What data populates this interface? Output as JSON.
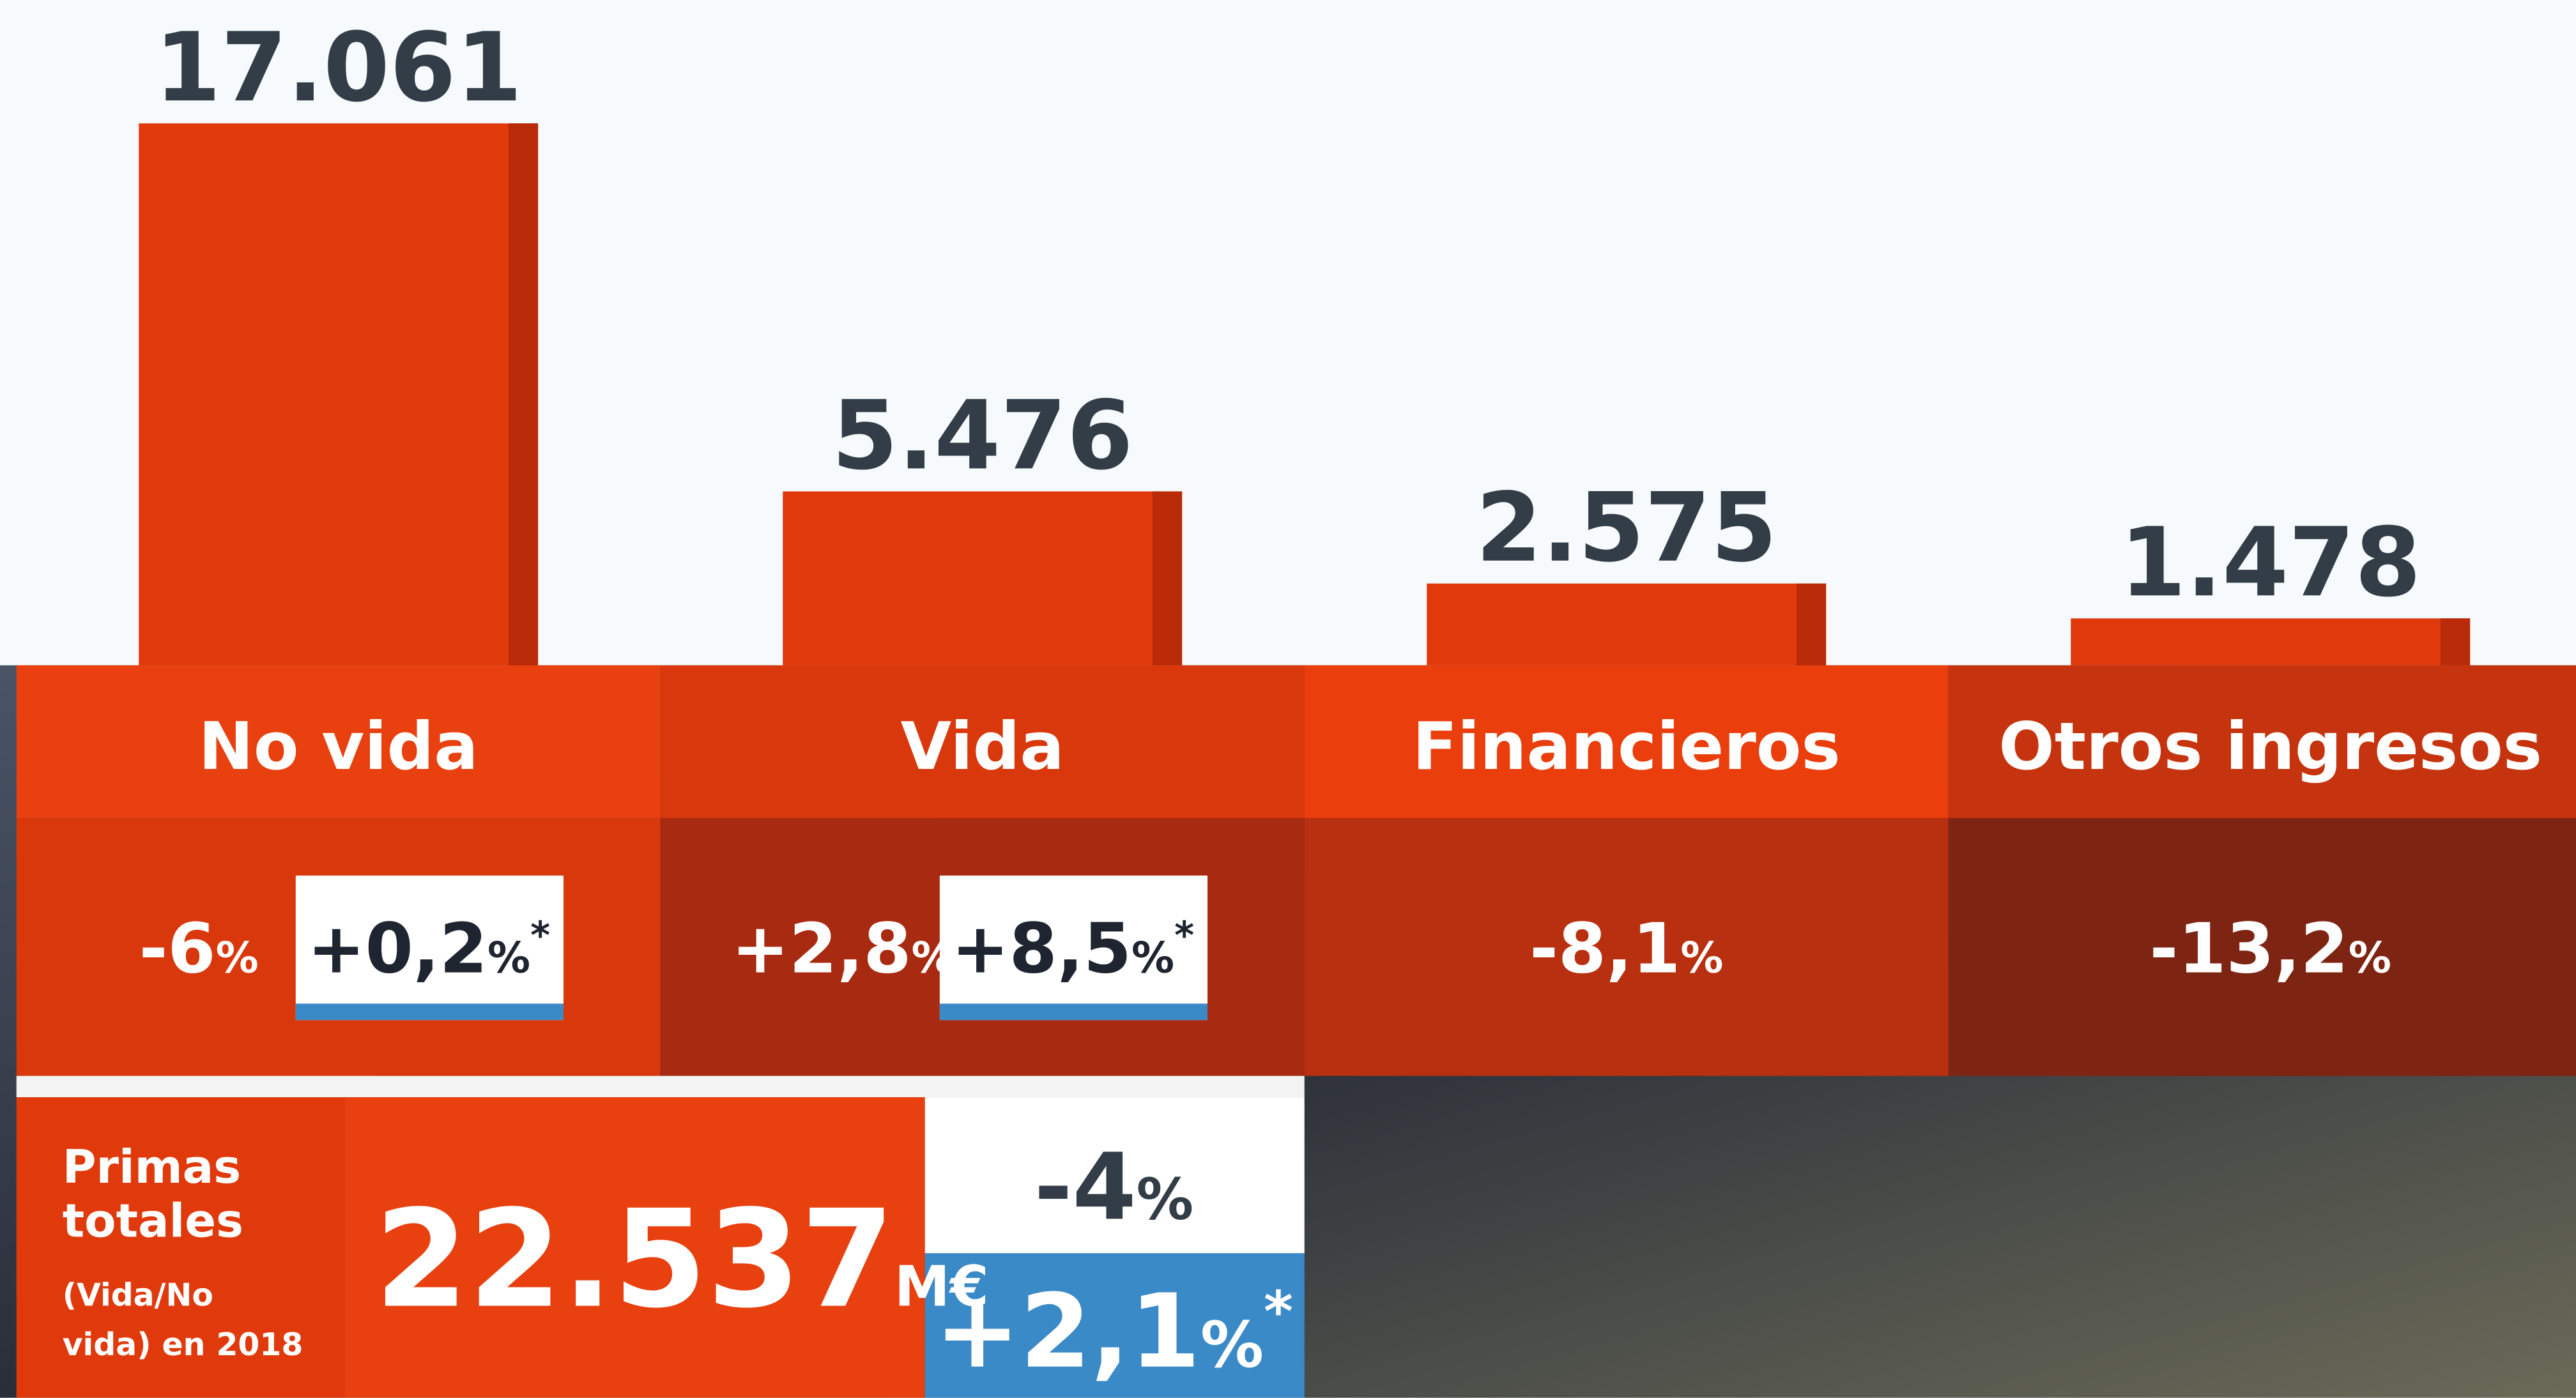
{
  "chart_data": {
    "type": "bar",
    "categories": [
      "No vida",
      "Vida",
      "Financieros",
      "Otros ingresos"
    ],
    "values": [
      17061,
      5476,
      2575,
      1478
    ],
    "value_labels": [
      "17.061",
      "5.476",
      "2.575",
      "1.478"
    ],
    "color": "#e03a0c",
    "changes": [
      "-6%",
      "+2,8%",
      "-8,1%",
      "-13,2%"
    ],
    "adjusted_changes": [
      "+0,2%*",
      "+8,5%*",
      null,
      null
    ],
    "total": {
      "label": "Primas totales",
      "note": "(Vida/No vida) en 2018",
      "value_label": "22.537",
      "unit": "M€",
      "change": "-4%",
      "adjusted_change": "+2,1%*"
    }
  }
}
